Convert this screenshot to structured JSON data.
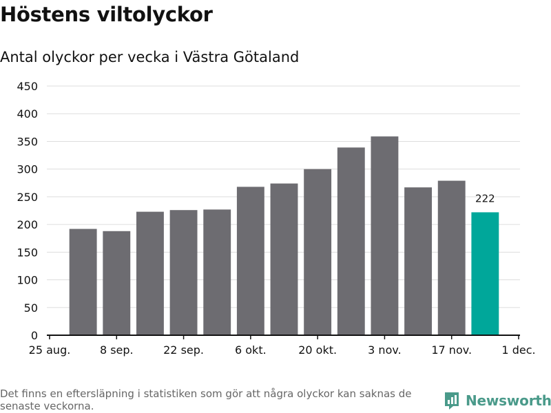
{
  "title": "Höstens viltolyckor",
  "subtitle": "Antal olyckor per vecka i Västra Götaland",
  "footnote": "Det finns en eftersläpning i statistiken som gör att några olyckor kan saknas de senaste veckorna.",
  "brand": "Newsworthy",
  "colors": {
    "bar": "#6d6c71",
    "highlight": "#00a79a",
    "grid": "#dddddd",
    "axis": "#111111",
    "brand": "#4a9a8a"
  },
  "chart_data": {
    "type": "bar",
    "title": "Höstens viltolyckor",
    "subtitle": "Antal olyckor per vecka i Västra Götaland",
    "xlabel": "",
    "ylabel": "",
    "ylim": [
      0,
      450
    ],
    "yticks": [
      0,
      50,
      100,
      150,
      200,
      250,
      300,
      350,
      400,
      450
    ],
    "xticks": [
      {
        "label": "25 aug.",
        "week": 0
      },
      {
        "label": "8 sep.",
        "week": 2
      },
      {
        "label": "22 sep.",
        "week": 4
      },
      {
        "label": "6 okt.",
        "week": 6
      },
      {
        "label": "20 okt.",
        "week": 8
      },
      {
        "label": "3 nov.",
        "week": 10
      },
      {
        "label": "17 nov.",
        "week": 12
      },
      {
        "label": "1 dec.",
        "week": 14
      }
    ],
    "bars": [
      {
        "week_start": 0.5,
        "value": 192,
        "highlight": false
      },
      {
        "week_start": 1.5,
        "value": 188,
        "highlight": false
      },
      {
        "week_start": 2.5,
        "value": 223,
        "highlight": false
      },
      {
        "week_start": 3.5,
        "value": 226,
        "highlight": false
      },
      {
        "week_start": 4.5,
        "value": 227,
        "highlight": false
      },
      {
        "week_start": 5.5,
        "value": 268,
        "highlight": false
      },
      {
        "week_start": 6.5,
        "value": 274,
        "highlight": false
      },
      {
        "week_start": 7.5,
        "value": 300,
        "highlight": false
      },
      {
        "week_start": 8.5,
        "value": 339,
        "highlight": false
      },
      {
        "week_start": 9.5,
        "value": 359,
        "highlight": false
      },
      {
        "week_start": 10.5,
        "value": 267,
        "highlight": false
      },
      {
        "week_start": 11.5,
        "value": 279,
        "highlight": false
      },
      {
        "week_start": 12.5,
        "value": 222,
        "highlight": true
      }
    ],
    "annotations": [
      {
        "bar_index": 12,
        "text": "222"
      }
    ],
    "grid": true
  }
}
